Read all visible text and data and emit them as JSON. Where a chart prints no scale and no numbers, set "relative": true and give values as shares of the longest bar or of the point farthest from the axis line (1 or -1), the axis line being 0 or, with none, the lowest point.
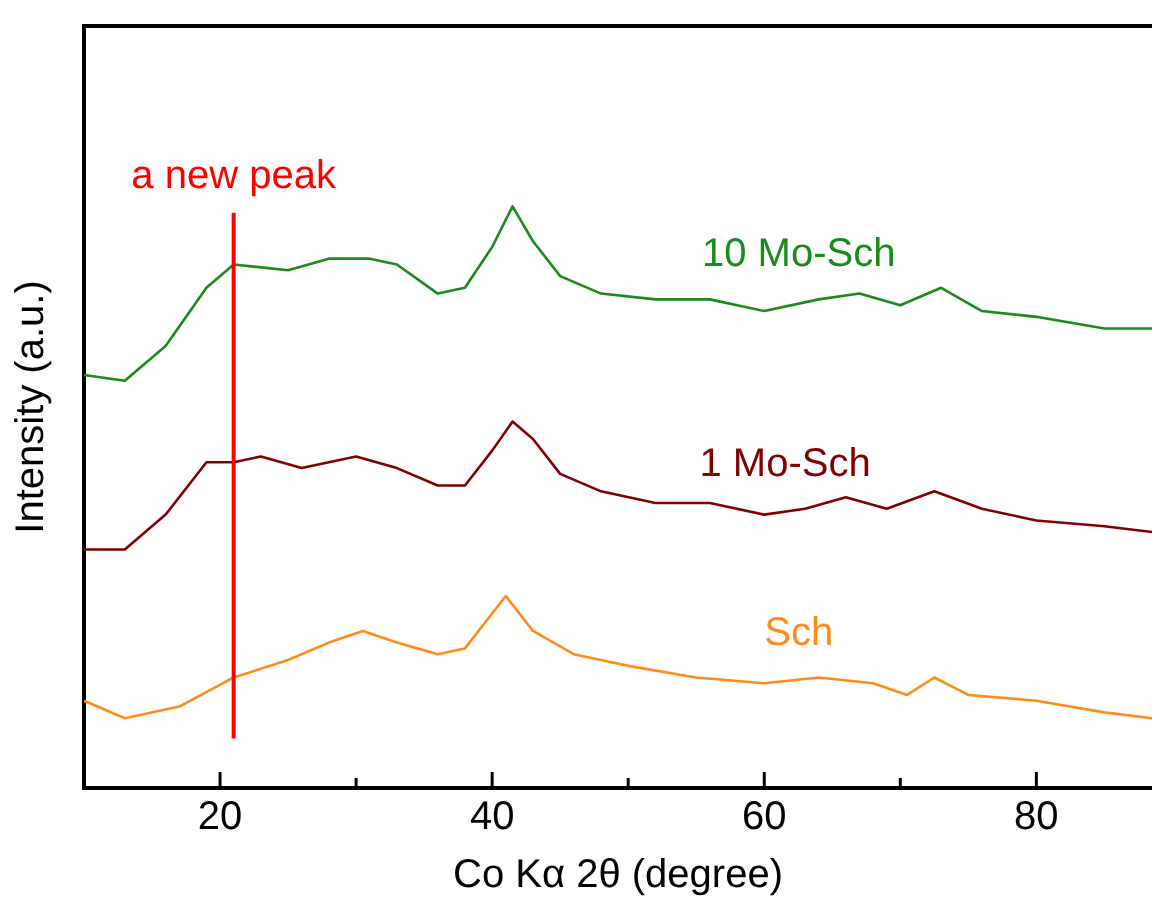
{
  "chart_data": {
    "type": "line",
    "xlabel": "Co Kα 2θ (degree)",
    "ylabel": "Intensity (a.u.)",
    "relative": true,
    "xlim": [
      10,
      88.5
    ],
    "xticks": [
      20,
      {
        "value": 30,
        "label": null
      },
      40,
      {
        "value": 50,
        "label": null
      },
      60,
      {
        "value": 70,
        "label": null
      },
      80
    ],
    "grid": false,
    "legend": false,
    "marker": "none",
    "line_style": "solid",
    "ref_lines": [
      {
        "axis": "x",
        "value": 21,
        "label": "a new peak",
        "color": "#ff0000"
      }
    ],
    "series": [
      {
        "name": "10 Mo-Sch",
        "color": "#1a8a1a",
        "x": [
          10,
          13,
          16,
          19,
          21,
          25,
          28,
          31,
          33,
          36,
          38,
          40,
          41.5,
          43,
          45,
          48,
          52,
          56,
          60,
          64,
          67,
          70,
          73,
          76,
          80,
          85,
          88.5
        ],
        "values": [
          0.71,
          0.7,
          0.76,
          0.86,
          0.9,
          0.89,
          0.91,
          0.91,
          0.9,
          0.85,
          0.86,
          0.93,
          1.0,
          0.94,
          0.88,
          0.85,
          0.84,
          0.84,
          0.82,
          0.84,
          0.85,
          0.83,
          0.86,
          0.82,
          0.81,
          0.79,
          0.79
        ]
      },
      {
        "name": "1 Mo-Sch",
        "color": "#800000",
        "x": [
          10,
          13,
          16,
          19,
          21,
          23,
          26,
          30,
          33,
          36,
          38,
          40,
          41.5,
          43,
          45,
          48,
          52,
          56,
          60,
          63,
          66,
          69,
          72.5,
          76,
          80,
          85,
          88.5
        ],
        "values": [
          0.41,
          0.41,
          0.47,
          0.56,
          0.56,
          0.57,
          0.55,
          0.57,
          0.55,
          0.52,
          0.52,
          0.58,
          0.63,
          0.6,
          0.54,
          0.51,
          0.49,
          0.49,
          0.47,
          0.48,
          0.5,
          0.48,
          0.51,
          0.48,
          0.46,
          0.45,
          0.44
        ]
      },
      {
        "name": "Sch",
        "color": "#ff8c1a",
        "x": [
          10,
          13,
          17,
          21,
          25,
          28,
          30.5,
          33,
          36,
          38,
          40,
          41,
          43,
          46,
          50,
          55,
          60,
          64,
          68,
          70.5,
          72.5,
          75,
          80,
          85,
          88.5
        ],
        "values": [
          0.15,
          0.12,
          0.14,
          0.19,
          0.22,
          0.25,
          0.27,
          0.25,
          0.23,
          0.24,
          0.3,
          0.33,
          0.27,
          0.23,
          0.21,
          0.19,
          0.18,
          0.19,
          0.18,
          0.16,
          0.19,
          0.16,
          0.15,
          0.13,
          0.12
        ]
      }
    ]
  }
}
